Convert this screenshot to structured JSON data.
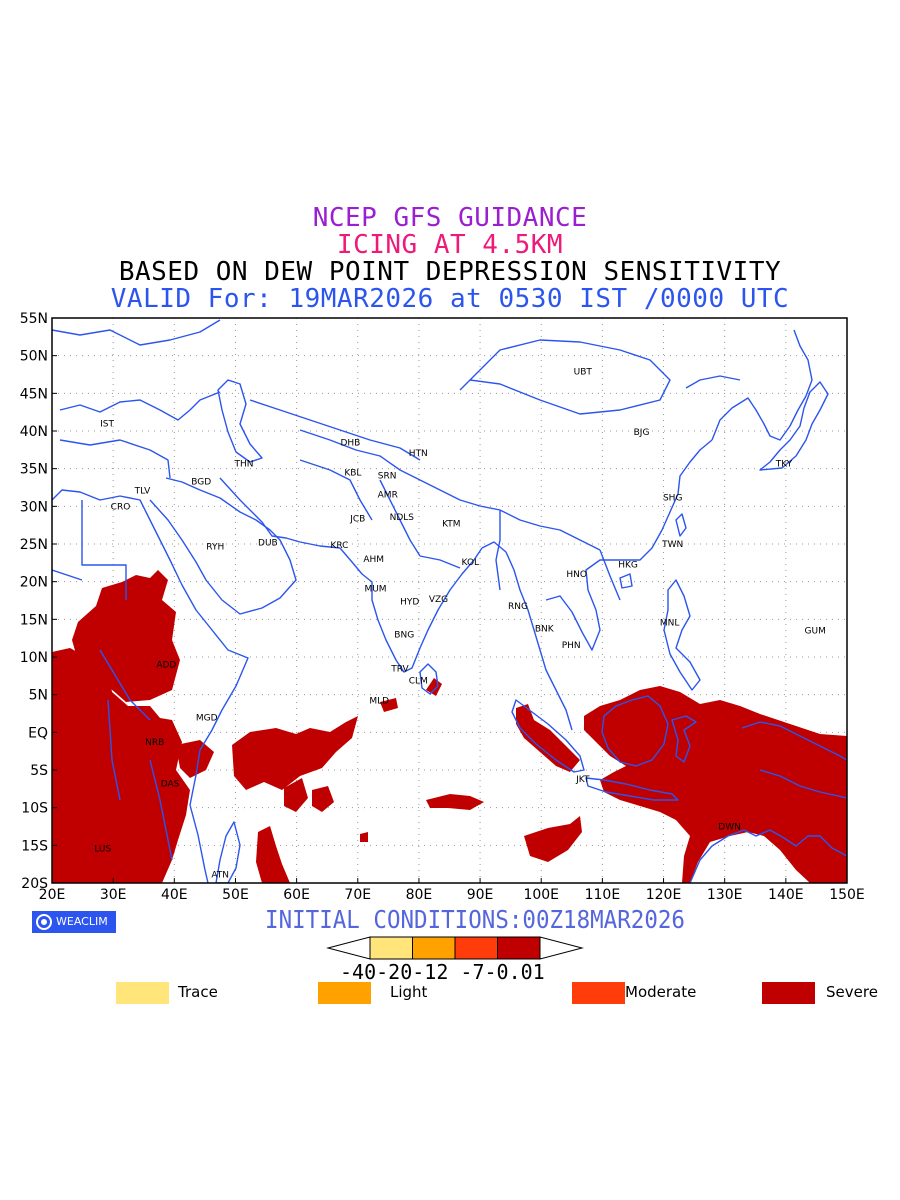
{
  "titles": {
    "line1": {
      "text": "NCEP GFS GUIDANCE",
      "color": "#9a1fd0"
    },
    "line2": {
      "text": "ICING AT 4.5KM",
      "color": "#ee1a7a"
    },
    "line3": {
      "text": "BASED ON DEW POINT DEPRESSION SENSITIVITY",
      "color": "#000000"
    },
    "line4": {
      "text": "VALID For: 19MAR2026 at 0530 IST /0000 UTC",
      "color": "#2b55ee"
    }
  },
  "map": {
    "lon_range": [
      20,
      150
    ],
    "lat_range": [
      -20,
      55
    ],
    "x_ticks": [
      "20E",
      "30E",
      "40E",
      "50E",
      "60E",
      "70E",
      "80E",
      "90E",
      "100E",
      "110E",
      "120E",
      "130E",
      "140E",
      "150E"
    ],
    "y_ticks": [
      "55N",
      "50N",
      "45N",
      "40N",
      "35N",
      "30N",
      "25N",
      "20N",
      "15N",
      "10N",
      "5N",
      "EQ",
      "5S",
      "10S",
      "15S",
      "20S"
    ],
    "grid": true,
    "coastline_color": "#2b55ee",
    "severe_color": "#c00000",
    "stations": [
      {
        "code": "UBT",
        "lon": 106.8,
        "lat": 47.9
      },
      {
        "code": "IST",
        "lon": 29.0,
        "lat": 41.0
      },
      {
        "code": "BJG",
        "lon": 116.4,
        "lat": 39.9
      },
      {
        "code": "DHB",
        "lon": 68.8,
        "lat": 38.5
      },
      {
        "code": "HTN",
        "lon": 79.9,
        "lat": 37.1
      },
      {
        "code": "THN",
        "lon": 51.4,
        "lat": 35.7
      },
      {
        "code": "TKY",
        "lon": 139.7,
        "lat": 35.7
      },
      {
        "code": "KBL",
        "lon": 69.2,
        "lat": 34.5
      },
      {
        "code": "SRN",
        "lon": 74.8,
        "lat": 34.1
      },
      {
        "code": "BGD",
        "lon": 44.4,
        "lat": 33.3
      },
      {
        "code": "TLV",
        "lon": 34.8,
        "lat": 32.1
      },
      {
        "code": "SHG",
        "lon": 121.5,
        "lat": 31.2
      },
      {
        "code": "AMR",
        "lon": 74.9,
        "lat": 31.6
      },
      {
        "code": "CRO",
        "lon": 31.2,
        "lat": 30.0
      },
      {
        "code": "JCB",
        "lon": 70.0,
        "lat": 28.4
      },
      {
        "code": "NDLS",
        "lon": 77.2,
        "lat": 28.6
      },
      {
        "code": "KTM",
        "lon": 85.3,
        "lat": 27.7
      },
      {
        "code": "RYH",
        "lon": 46.7,
        "lat": 24.7
      },
      {
        "code": "DUB",
        "lon": 55.3,
        "lat": 25.2
      },
      {
        "code": "TWN",
        "lon": 121.5,
        "lat": 25.0
      },
      {
        "code": "KRC",
        "lon": 67.0,
        "lat": 24.9
      },
      {
        "code": "AHM",
        "lon": 72.6,
        "lat": 23.0
      },
      {
        "code": "KOL",
        "lon": 88.4,
        "lat": 22.6
      },
      {
        "code": "HKG",
        "lon": 114.2,
        "lat": 22.3
      },
      {
        "code": "HNO",
        "lon": 105.8,
        "lat": 21.0
      },
      {
        "code": "MUM",
        "lon": 72.9,
        "lat": 19.1
      },
      {
        "code": "HYD",
        "lon": 78.5,
        "lat": 17.4
      },
      {
        "code": "VZG",
        "lon": 83.2,
        "lat": 17.7
      },
      {
        "code": "RNG",
        "lon": 96.2,
        "lat": 16.8
      },
      {
        "code": "MNL",
        "lon": 121.0,
        "lat": 14.6
      },
      {
        "code": "GUM",
        "lon": 144.8,
        "lat": 13.5
      },
      {
        "code": "BNK",
        "lon": 100.5,
        "lat": 13.8
      },
      {
        "code": "BNG",
        "lon": 77.6,
        "lat": 13.0
      },
      {
        "code": "PHN",
        "lon": 104.9,
        "lat": 11.6
      },
      {
        "code": "ADD",
        "lon": 38.7,
        "lat": 9.0
      },
      {
        "code": "TRV",
        "lon": 76.9,
        "lat": 8.5
      },
      {
        "code": "CLM",
        "lon": 79.9,
        "lat": 6.9
      },
      {
        "code": "MLD",
        "lon": 73.5,
        "lat": 4.2
      },
      {
        "code": "MGD",
        "lon": 45.3,
        "lat": 2.0
      },
      {
        "code": "NRB",
        "lon": 36.8,
        "lat": -1.3
      },
      {
        "code": "DAS",
        "lon": 39.3,
        "lat": -6.8
      },
      {
        "code": "JKT",
        "lon": 106.8,
        "lat": -6.2
      },
      {
        "code": "DWN",
        "lon": 130.8,
        "lat": -12.5
      },
      {
        "code": "LUS",
        "lon": 28.3,
        "lat": -15.4
      },
      {
        "code": "ATN",
        "lon": 47.5,
        "lat": -18.9
      }
    ]
  },
  "logo": {
    "text": "WEACLIM"
  },
  "initial_conditions": {
    "text": "INITIAL CONDITIONS:00Z18MAR2026",
    "color": "#5566dd"
  },
  "colorbar": {
    "labels": "-40-20-12 -7-0.01",
    "colors": [
      "#ffe57a",
      "#ffa200",
      "#ff3c0a",
      "#c00000"
    ]
  },
  "legend": [
    {
      "label": "Trace",
      "color": "#ffe57a"
    },
    {
      "label": "Light",
      "color": "#ffa200"
    },
    {
      "label": "Moderate",
      "color": "#ff3c0a"
    },
    {
      "label": "Severe",
      "color": "#c00000"
    }
  ]
}
